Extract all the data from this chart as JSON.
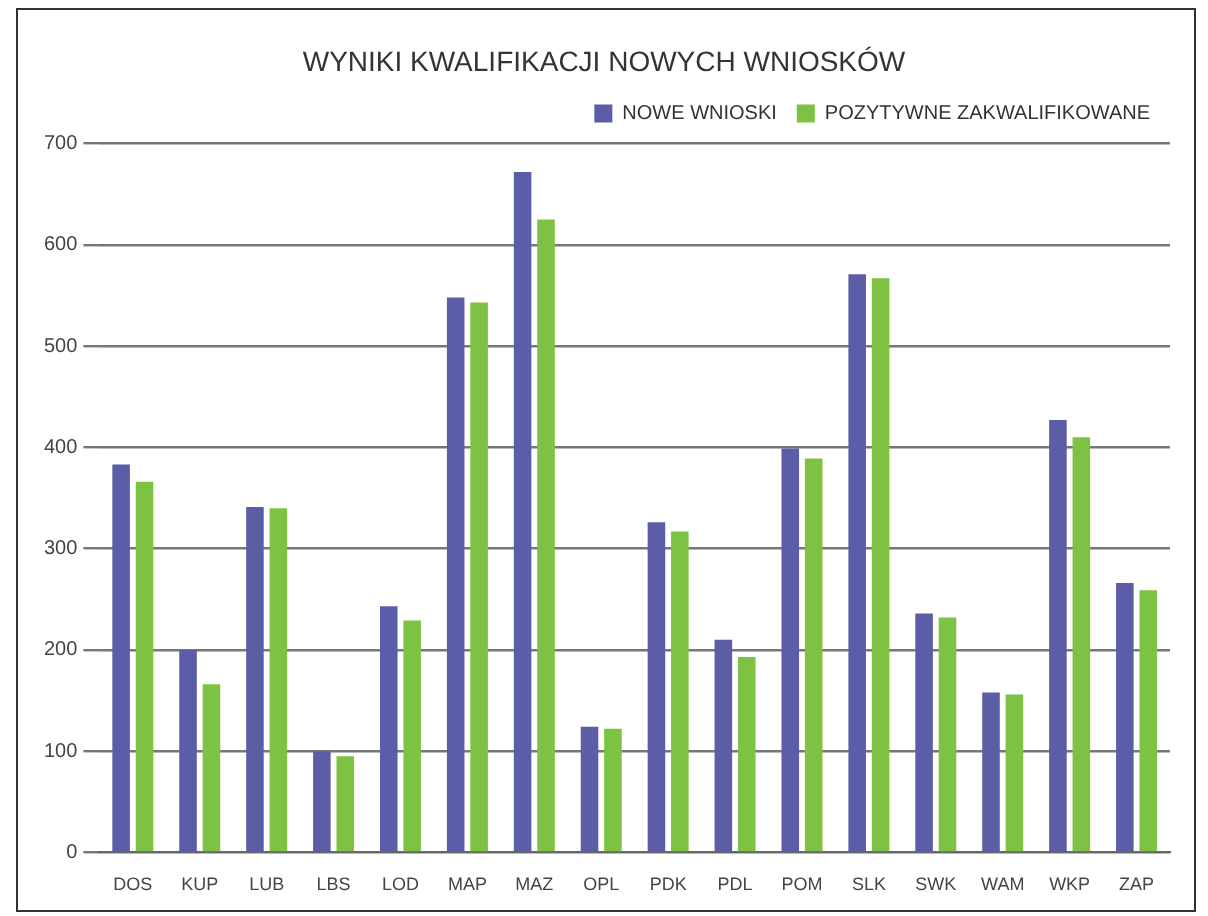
{
  "chart_data": {
    "type": "bar",
    "title": "WYNIKI KWALIFIKACJI NOWYCH WNIOSKÓW",
    "categories": [
      "DOS",
      "KUP",
      "LUB",
      "LBS",
      "LOD",
      "MAP",
      "MAZ",
      "OPL",
      "PDK",
      "PDL",
      "POM",
      "SLK",
      "SWK",
      "WAM",
      "WKP",
      "ZAP"
    ],
    "series": [
      {
        "name": "NOWE WNIOSKI",
        "color": "#5b5ea6",
        "values": [
          383,
          200,
          341,
          100,
          243,
          548,
          672,
          124,
          326,
          210,
          399,
          571,
          236,
          158,
          427,
          266
        ]
      },
      {
        "name": "POZYTYWNE ZAKWALIFIKOWANE",
        "color": "#7dc242",
        "values": [
          366,
          166,
          340,
          95,
          229,
          543,
          625,
          122,
          317,
          193,
          389,
          567,
          232,
          156,
          410,
          259
        ]
      }
    ],
    "ylim": [
      0,
      700
    ],
    "yticks": [
      0,
      100,
      200,
      300,
      400,
      500,
      600,
      700
    ],
    "grid": "y",
    "legend": "top right"
  }
}
